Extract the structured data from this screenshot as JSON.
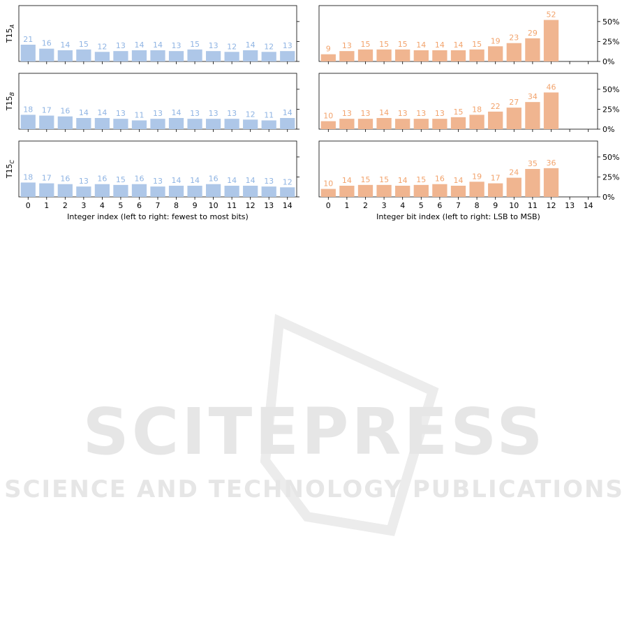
{
  "chart_data": [
    {
      "type": "bar",
      "xlabel": "Integer index (left to right: fewest to most bits)",
      "color": "#aec7e8",
      "label_color": "#8fb4e3",
      "sharey": true,
      "categories": [
        0,
        1,
        2,
        3,
        4,
        5,
        6,
        7,
        8,
        9,
        10,
        11,
        12,
        13,
        14
      ],
      "rows": [
        {
          "ylabel": "T15",
          "ylabel_subscript": "A",
          "values": [
            21,
            16,
            14,
            15,
            12,
            13,
            14,
            14,
            13,
            15,
            13,
            12,
            14,
            12,
            13
          ]
        },
        {
          "ylabel": "T15",
          "ylabel_subscript": "B",
          "values": [
            18,
            17,
            16,
            14,
            14,
            13,
            11,
            13,
            14,
            13,
            13,
            13,
            12,
            11,
            14
          ]
        },
        {
          "ylabel": "T15",
          "ylabel_subscript": "C",
          "values": [
            18,
            17,
            16,
            13,
            16,
            15,
            16,
            13,
            14,
            14,
            16,
            14,
            14,
            13,
            12
          ]
        }
      ]
    },
    {
      "type": "bar",
      "xlabel": "Integer bit index (left to right: LSB to MSB)",
      "color": "#f0b590",
      "label_color": "#f2a36c",
      "categories": [
        0,
        1,
        2,
        3,
        4,
        5,
        6,
        7,
        8,
        9,
        10,
        11,
        12,
        13,
        14
      ],
      "ylim": [
        0,
        70
      ],
      "yticks": [
        {
          "value": 0,
          "label": "0%"
        },
        {
          "value": 25,
          "label": "25%"
        },
        {
          "value": 50,
          "label": "50%"
        }
      ],
      "rows": [
        {
          "values": [
            9,
            13,
            15,
            15,
            15,
            14,
            14,
            14,
            15,
            19,
            23,
            29,
            52,
            null,
            null
          ]
        },
        {
          "values": [
            10,
            13,
            13,
            14,
            13,
            13,
            13,
            15,
            18,
            22,
            27,
            34,
            46,
            null,
            null
          ]
        },
        {
          "values": [
            10,
            14,
            15,
            15,
            14,
            15,
            16,
            14,
            19,
            17,
            24,
            35,
            36,
            null,
            null
          ]
        }
      ]
    }
  ],
  "watermark": {
    "title": "SCITEPRESS",
    "subtitle": "SCIENCE AND TECHNOLOGY PUBLICATIONS"
  }
}
